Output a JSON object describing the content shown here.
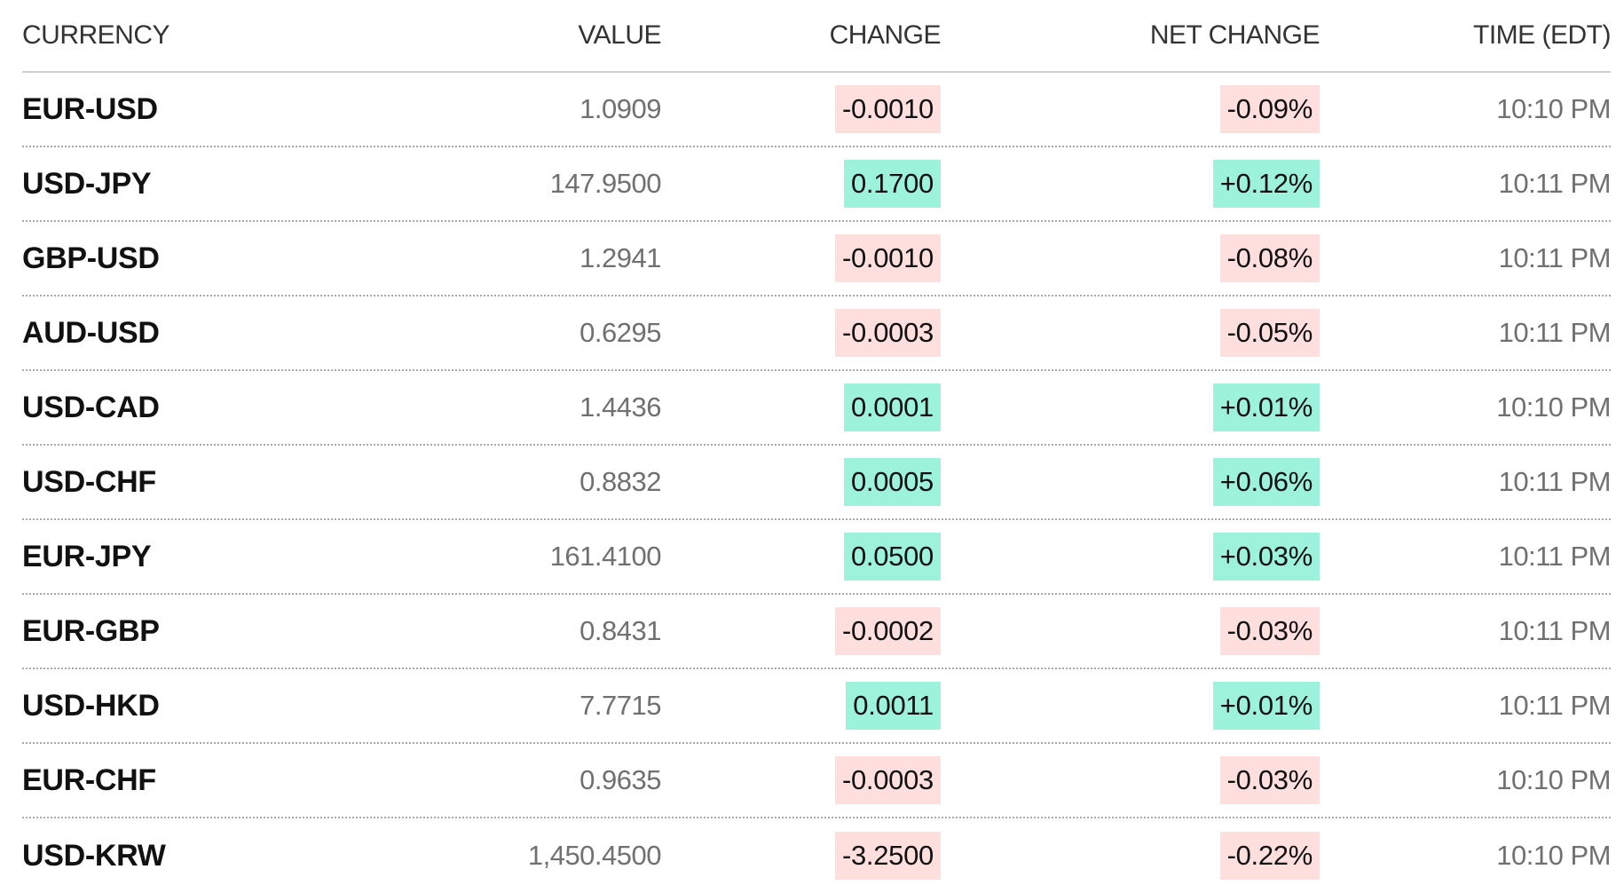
{
  "columns": {
    "currency": "CURRENCY",
    "value": "VALUE",
    "change": "CHANGE",
    "net_change": "NET CHANGE",
    "time": "TIME (EDT)"
  },
  "colors": {
    "negative_bg": "#ffdede",
    "positive_bg": "#9df2dc"
  },
  "rows": [
    {
      "currency": "EUR-USD",
      "value": "1.0909",
      "change": "-0.0010",
      "net_change": "-0.09%",
      "time": "10:10 PM",
      "direction": "neg"
    },
    {
      "currency": "USD-JPY",
      "value": "147.9500",
      "change": "0.1700",
      "net_change": "+0.12%",
      "time": "10:11 PM",
      "direction": "pos"
    },
    {
      "currency": "GBP-USD",
      "value": "1.2941",
      "change": "-0.0010",
      "net_change": "-0.08%",
      "time": "10:11 PM",
      "direction": "neg"
    },
    {
      "currency": "AUD-USD",
      "value": "0.6295",
      "change": "-0.0003",
      "net_change": "-0.05%",
      "time": "10:11 PM",
      "direction": "neg"
    },
    {
      "currency": "USD-CAD",
      "value": "1.4436",
      "change": "0.0001",
      "net_change": "+0.01%",
      "time": "10:10 PM",
      "direction": "pos"
    },
    {
      "currency": "USD-CHF",
      "value": "0.8832",
      "change": "0.0005",
      "net_change": "+0.06%",
      "time": "10:11 PM",
      "direction": "pos"
    },
    {
      "currency": "EUR-JPY",
      "value": "161.4100",
      "change": "0.0500",
      "net_change": "+0.03%",
      "time": "10:11 PM",
      "direction": "pos"
    },
    {
      "currency": "EUR-GBP",
      "value": "0.8431",
      "change": "-0.0002",
      "net_change": "-0.03%",
      "time": "10:11 PM",
      "direction": "neg"
    },
    {
      "currency": "USD-HKD",
      "value": "7.7715",
      "change": "0.0011",
      "net_change": "+0.01%",
      "time": "10:11 PM",
      "direction": "pos"
    },
    {
      "currency": "EUR-CHF",
      "value": "0.9635",
      "change": "-0.0003",
      "net_change": "-0.03%",
      "time": "10:10 PM",
      "direction": "neg"
    },
    {
      "currency": "USD-KRW",
      "value": "1,450.4500",
      "change": "-3.2500",
      "net_change": "-0.22%",
      "time": "10:10 PM",
      "direction": "neg"
    }
  ]
}
